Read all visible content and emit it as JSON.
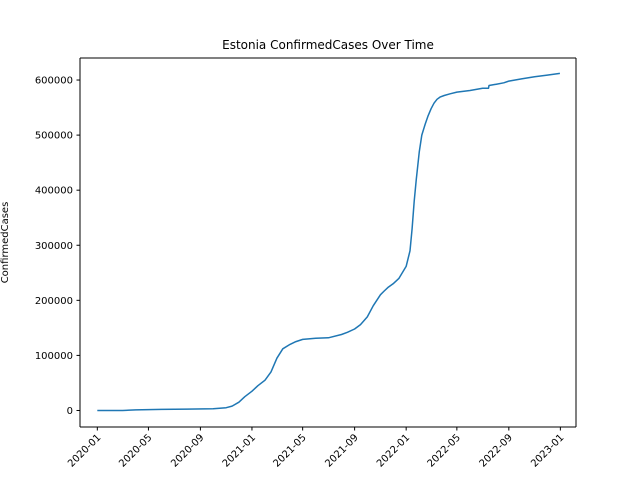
{
  "chart_data": {
    "type": "line",
    "title": "Estonia  ConfirmedCases Over Time",
    "xlabel": "",
    "ylabel": "ConfirmedCases",
    "grid": false,
    "legend": "none",
    "xlim": [
      "2019-11-21",
      "2023-02-07"
    ],
    "ylim": [
      -30000,
      640000
    ],
    "x_ticks": [
      "2020-01",
      "2020-05",
      "2020-09",
      "2021-01",
      "2021-05",
      "2021-09",
      "2022-01",
      "2022-05",
      "2022-09",
      "2023-01"
    ],
    "y_ticks": [
      0,
      100000,
      200000,
      300000,
      400000,
      500000,
      600000
    ],
    "series": [
      {
        "color": "#1f77b4",
        "x": [
          "2020-01-01",
          "2020-03-01",
          "2020-04-01",
          "2020-06-01",
          "2020-08-01",
          "2020-10-01",
          "2020-11-01",
          "2020-11-15",
          "2020-12-01",
          "2020-12-15",
          "2021-01-01",
          "2021-01-15",
          "2021-02-01",
          "2021-02-15",
          "2021-03-01",
          "2021-03-15",
          "2021-04-01",
          "2021-04-15",
          "2021-05-01",
          "2021-05-15",
          "2021-06-01",
          "2021-07-01",
          "2021-08-01",
          "2021-08-15",
          "2021-09-01",
          "2021-09-15",
          "2021-10-01",
          "2021-10-15",
          "2021-11-01",
          "2021-11-10",
          "2021-11-20",
          "2021-12-01",
          "2021-12-15",
          "2022-01-01",
          "2022-01-10",
          "2022-01-15",
          "2022-01-20",
          "2022-01-25",
          "2022-02-01",
          "2022-02-07",
          "2022-02-15",
          "2022-02-22",
          "2022-03-01",
          "2022-03-08",
          "2022-03-15",
          "2022-03-22",
          "2022-04-01",
          "2022-04-15",
          "2022-05-01",
          "2022-06-01",
          "2022-07-01",
          "2022-07-15",
          "2022-07-16",
          "2022-07-31",
          "2022-08-01",
          "2022-08-20",
          "2022-09-01",
          "2022-10-01",
          "2022-11-01",
          "2022-12-01",
          "2022-12-31"
        ],
        "y": [
          0,
          0,
          1000,
          2000,
          2500,
          3000,
          5000,
          8000,
          15000,
          25000,
          35000,
          45000,
          55000,
          70000,
          95000,
          112000,
          120000,
          125000,
          129000,
          130000,
          131000,
          132000,
          138000,
          142000,
          148000,
          156000,
          170000,
          190000,
          210000,
          217000,
          224000,
          230000,
          240000,
          262000,
          290000,
          330000,
          380000,
          420000,
          470000,
          500000,
          520000,
          535000,
          548000,
          558000,
          565000,
          569000,
          572000,
          575000,
          578000,
          581000,
          585000,
          585000,
          590000,
          592000,
          592000,
          595000,
          598000,
          602000,
          606000,
          609000,
          612000
        ]
      }
    ]
  }
}
